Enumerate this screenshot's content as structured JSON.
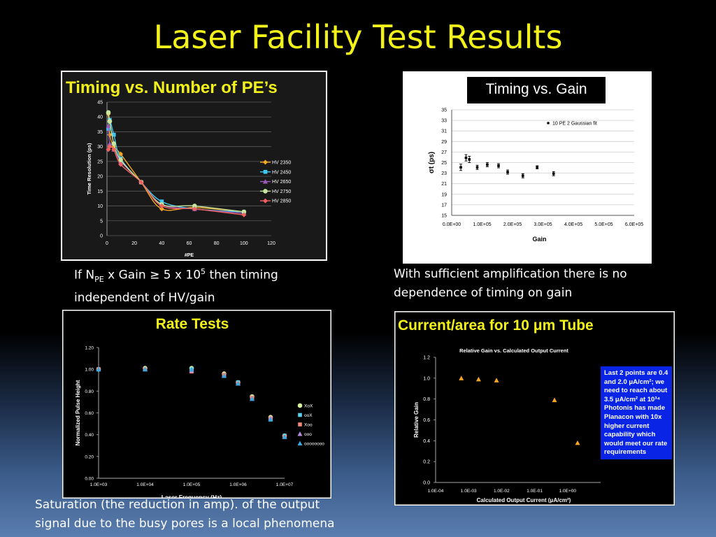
{
  "slide": {
    "title": "Laser Facility Test Results",
    "caption1_prefix": "If   N",
    "caption1_sub": "PE",
    "caption1_mid": " x Gain ≥ 5 x 10",
    "caption1_sup": "5",
    "caption1_suffix": "  then timing",
    "caption1_line2": "independent of HV/gain",
    "caption2_line1": "With sufficient amplification there is  no",
    "caption2_line2": "dependence  of timing on gain",
    "caption3_line1": "Saturation (the reduction in amp). of the output",
    "caption3_line2": " signal due to the busy  pores is a local phenomena"
  },
  "colors": {
    "title": "#f2f21a",
    "hv2350": "#f5a623",
    "hv2450": "#41c8f0",
    "hv2650": "#9b59b6",
    "hv2750": "#c8e6a0",
    "hv2850": "#f06262",
    "rate_XoX": "#d8f0a0",
    "rate_ooX": "#5ad2f0",
    "rate_Xoo": "#f28a7a",
    "rate_ooo": "#b58ae0",
    "rate_oooooooo": "#3aa8e0",
    "current": "#f5a623",
    "callout_bg": "#0a24e6"
  },
  "chart_data": [
    {
      "type": "line",
      "title": "Timing vs. Number of PE’s",
      "xlabel": "#PE",
      "ylabel": "Time Resolution (ps)",
      "xlim": [
        0,
        120
      ],
      "ylim": [
        0,
        45
      ],
      "xticks": [
        "0",
        "20",
        "40",
        "60",
        "80",
        "100",
        "120"
      ],
      "yticks": [
        "0",
        "5",
        "10",
        "15",
        "20",
        "25",
        "30",
        "35",
        "40",
        "45"
      ],
      "legend_position": "right",
      "grid": true,
      "series": [
        {
          "name": "HV 2350",
          "x": [
            1,
            2,
            5,
            10,
            25,
            40,
            64,
            100
          ],
          "y": [
            41,
            34,
            30,
            27.5,
            18,
            9,
            9.5,
            8
          ]
        },
        {
          "name": "HV 2450",
          "x": [
            1,
            2,
            5,
            10,
            25,
            40,
            64,
            100
          ],
          "y": [
            36,
            39,
            34,
            26,
            18,
            11.5,
            9,
            8
          ]
        },
        {
          "name": "HV 2650",
          "x": [
            1,
            2,
            5,
            10,
            25,
            40,
            64,
            100
          ],
          "y": [
            37,
            31,
            29,
            25,
            18,
            10.5,
            9,
            7.5
          ]
        },
        {
          "name": "HV 2750",
          "x": [
            1,
            2,
            5,
            10,
            25,
            40,
            64,
            100
          ],
          "y": [
            41.5,
            38.5,
            31,
            25.5,
            18,
            10.5,
            10,
            8
          ]
        },
        {
          "name": "HV 2850",
          "x": [
            1,
            2,
            5,
            10,
            25,
            40,
            64,
            100
          ],
          "y": [
            29,
            30,
            29,
            24,
            18,
            10,
            9,
            7
          ]
        }
      ]
    },
    {
      "type": "scatter",
      "title": "Timing vs. Gain",
      "xlabel": "Gain",
      "ylabel": "σt (ps)",
      "xlim": [
        0,
        600000
      ],
      "ylim": [
        15,
        35
      ],
      "xticks": [
        "0.0E+00",
        "1.0E+05",
        "2.0E+05",
        "3.0E+05",
        "4.0E+05",
        "5.0E+05",
        "6.0E+05"
      ],
      "yticks": [
        "15",
        "17",
        "19",
        "21",
        "23",
        "25",
        "27",
        "29",
        "31",
        "33",
        "35"
      ],
      "legend_position": "top-right",
      "grid": true,
      "series": [
        {
          "name": "10 PE 2 Gaussian fit",
          "x": [
            30000,
            47000,
            58000,
            84000,
            117000,
            154000,
            184000,
            234000,
            281000,
            335000
          ],
          "y": [
            24.1,
            25.9,
            25.6,
            24.1,
            24.6,
            24.4,
            23.2,
            22.5,
            24.1,
            22.9
          ],
          "err": [
            0.6,
            0.6,
            0.6,
            0.4,
            0.4,
            0.4,
            0.4,
            0.4,
            0.3,
            0.4
          ]
        }
      ]
    },
    {
      "type": "scatter",
      "title": "Rate Tests",
      "xlabel": "Laser Frequency (Hz)",
      "ylabel": "Normalized Pulse Height",
      "xscale": "log",
      "xlim": [
        1000,
        10000000
      ],
      "ylim": [
        0,
        1.2
      ],
      "xticks": [
        "1.0E+03",
        "1.0E+04",
        "1.0E+05",
        "1.0E+06",
        "1.0E+07"
      ],
      "yticks": [
        "0.00",
        "0.20",
        "0.40",
        "0.60",
        "0.80",
        "1.00",
        "1.20"
      ],
      "legend_position": "right",
      "grid": false,
      "series": [
        {
          "name": "XoX",
          "x": [
            1000,
            10000,
            100000,
            500000,
            1000000,
            2000000,
            5000000,
            10000000
          ],
          "y": [
            1.0,
            1.01,
            1.01,
            0.96,
            0.88,
            0.75,
            0.56,
            0.39
          ]
        },
        {
          "name": "ooX",
          "x": [
            1000,
            10000,
            100000,
            500000,
            1000000,
            2000000,
            5000000,
            10000000
          ],
          "y": [
            1.0,
            1.0,
            1.0,
            0.95,
            0.88,
            0.74,
            0.55,
            0.39
          ]
        },
        {
          "name": "Xoo",
          "x": [
            1000,
            10000,
            100000,
            500000,
            1000000,
            2000000,
            5000000,
            10000000
          ],
          "y": [
            1.0,
            1.0,
            0.98,
            0.95,
            0.87,
            0.74,
            0.55,
            0.38
          ]
        },
        {
          "name": "ooo",
          "x": [
            1000,
            10000,
            100000,
            500000,
            1000000,
            2000000,
            5000000,
            10000000
          ],
          "y": [
            1.0,
            1.0,
            0.99,
            0.94,
            0.87,
            0.73,
            0.55,
            0.38
          ]
        },
        {
          "name": "oooooooo",
          "x": [
            1000,
            10000,
            100000,
            500000,
            1000000,
            2000000,
            5000000,
            10000000
          ],
          "y": [
            1.0,
            1.0,
            1.0,
            0.94,
            0.87,
            0.73,
            0.54,
            0.38
          ]
        }
      ]
    },
    {
      "type": "scatter",
      "title": "Current/area for 10 μm Tube",
      "subtitle": "Relative Gain vs. Calculated Output Current",
      "xlabel": "Calculated Output Current (μA/cm²)",
      "ylabel": "Relative Gain",
      "xscale": "log",
      "xlim": [
        0.0001,
        10
      ],
      "ylim": [
        0,
        1.2
      ],
      "xticks": [
        "1.0E-04",
        "1.0E-03",
        "1.0E-02",
        "1.0E-01",
        "1.0E+00"
      ],
      "yticks": [
        "0.0",
        "0.2",
        "0.4",
        "0.6",
        "0.8",
        "1.0",
        "1.2"
      ],
      "grid": false,
      "series": [
        {
          "x": [
            0.0006,
            0.002,
            0.007,
            0.4,
            2.0
          ],
          "y": [
            1.0,
            0.99,
            0.98,
            0.79,
            0.38
          ]
        }
      ],
      "annotation": "Last 2 points are 0.4 and 2.0 μA/cm²; we need to reach about 3.5 μA/cm² at  10³⁴ Photonis  has made Planacon  with 10x higher current capability which would  meet our rate requirements",
      "annotation_lines": [
        "Last 2 points are 0.4",
        "and 2.0 μA/cm²; we",
        "need to reach about",
        "3.5 μA/cm² at  10³⁴",
        "Photonis  has made",
        "Planacon  with 10x",
        "higher current",
        "capability which",
        "would  meet our rate",
        "requirements"
      ]
    }
  ]
}
